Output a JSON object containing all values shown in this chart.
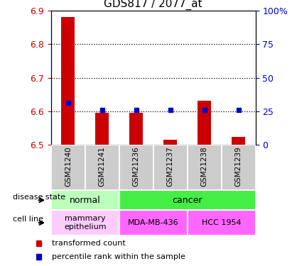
{
  "title": "GDS817 / 2077_at",
  "samples": [
    "GSM21240",
    "GSM21241",
    "GSM21236",
    "GSM21237",
    "GSM21238",
    "GSM21239"
  ],
  "red_values": [
    6.882,
    6.595,
    6.595,
    6.515,
    6.632,
    6.525
  ],
  "blue_values": [
    6.625,
    6.605,
    6.605,
    6.605,
    6.605,
    6.605
  ],
  "ylim": [
    6.5,
    6.9
  ],
  "yticks": [
    6.5,
    6.6,
    6.7,
    6.8,
    6.9
  ],
  "right_yticks": [
    0,
    25,
    50,
    75,
    100
  ],
  "right_ytick_labels": [
    "0",
    "25",
    "50",
    "75",
    "100%"
  ],
  "bar_color": "#cc0000",
  "blue_color": "#0000cc",
  "bg_color": "#ffffff",
  "left_label_color": "#cc0000",
  "right_label_color": "#0000cc",
  "disease_state_normal": "normal",
  "disease_state_cancer": "cancer",
  "cell_line_mammary": "mammary\nepithelium",
  "cell_line_mda": "MDA-MB-436",
  "cell_line_hcc": "HCC 1954",
  "normal_color": "#bbffbb",
  "cancer_color": "#44ee44",
  "mammary_color": "#ffccff",
  "mda_color": "#ff66ff",
  "hcc_color": "#ff66ff",
  "sample_bg_color": "#cccccc",
  "sample_border_color": "#888888",
  "legend_red": "transformed count",
  "legend_blue": "percentile rank within the sample",
  "disease_label": "disease state",
  "cell_line_label": "cell line"
}
